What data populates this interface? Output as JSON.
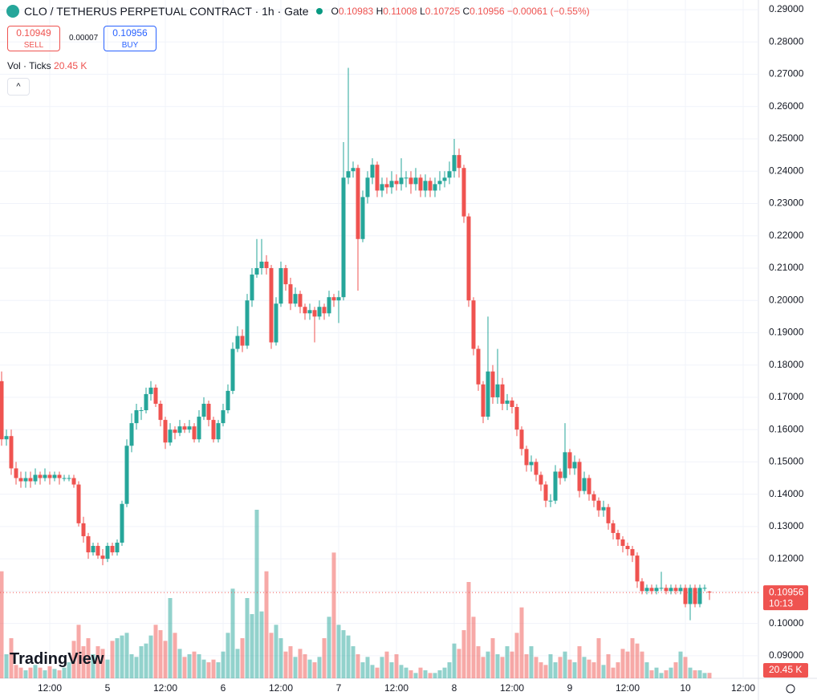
{
  "header": {
    "symbol": "CLO / TETHERUS PERPETUAL CONTRACT · 1h · Gate",
    "letters": [
      "O",
      "H",
      "L",
      "C"
    ],
    "change": "−0.00061 (−0.55%)",
    "sell_price": "0.10949",
    "sell": "SELL",
    "spread": "0.00007",
    "buy_price": "0.10956",
    "buy": "BUY",
    "volume_label": "Vol · Ticks",
    "volume_value": "20.45 K",
    "countdown": "10:13",
    "brand": "TradingView"
  },
  "chart_data": {
    "type": "candlestick",
    "up_color": "#26a69a",
    "down_color": "#ef5350",
    "open": [
      0.175,
      0.157,
      0.158,
      0.148,
      0.145,
      0.144,
      0.145,
      0.144,
      0.146,
      0.145,
      0.146,
      0.145,
      0.146,
      0.145,
      0.145,
      0.145,
      0.143,
      0.131,
      0.127,
      0.122,
      0.124,
      0.121,
      0.12,
      0.124,
      0.122,
      0.125,
      0.137,
      0.155,
      0.162,
      0.166,
      0.166,
      0.171,
      0.173,
      0.168,
      0.163,
      0.156,
      0.16,
      0.159,
      0.161,
      0.16,
      0.161,
      0.157,
      0.164,
      0.168,
      0.163,
      0.157,
      0.162,
      0.166,
      0.172,
      0.185,
      0.189,
      0.186,
      0.2,
      0.208,
      0.21,
      0.212,
      0.21,
      0.187,
      0.199,
      0.21,
      0.205,
      0.199,
      0.202,
      0.198,
      0.196,
      0.197,
      0.195,
      0.198,
      0.196,
      0.201,
      0.2,
      0.201,
      0.238,
      0.24,
      0.241,
      0.219,
      0.232,
      0.238,
      0.242,
      0.234,
      0.236,
      0.235,
      0.237,
      0.236,
      0.238,
      0.238,
      0.236,
      0.238,
      0.234,
      0.237,
      0.234,
      0.236,
      0.237,
      0.238,
      0.24,
      0.245,
      0.241,
      0.226,
      0.2,
      0.185,
      0.174,
      0.164,
      0.178,
      0.17,
      0.174,
      0.168,
      0.169,
      0.167,
      0.16,
      0.154,
      0.149,
      0.15,
      0.146,
      0.143,
      0.138,
      0.138,
      0.147,
      0.145,
      0.153,
      0.148,
      0.15,
      0.141,
      0.145,
      0.14,
      0.138,
      0.135,
      0.136,
      0.131,
      0.128,
      0.126,
      0.124,
      0.123,
      0.121,
      0.113,
      0.11,
      0.111,
      0.11,
      0.111,
      0.111,
      0.11,
      0.111,
      0.11,
      0.111,
      0.106,
      0.111,
      0.106,
      0.111,
      0.10983
    ],
    "high": [
      0.178,
      0.16,
      0.16,
      0.15,
      0.147,
      0.147,
      0.147,
      0.148,
      0.147,
      0.148,
      0.147,
      0.147,
      0.147,
      0.146,
      0.146,
      0.146,
      0.144,
      0.133,
      0.128,
      0.125,
      0.125,
      0.123,
      0.125,
      0.125,
      0.126,
      0.138,
      0.157,
      0.165,
      0.168,
      0.167,
      0.173,
      0.175,
      0.174,
      0.169,
      0.164,
      0.162,
      0.161,
      0.163,
      0.162,
      0.163,
      0.162,
      0.166,
      0.17,
      0.169,
      0.164,
      0.163,
      0.168,
      0.174,
      0.187,
      0.192,
      0.191,
      0.202,
      0.21,
      0.219,
      0.219,
      0.214,
      0.211,
      0.201,
      0.212,
      0.211,
      0.207,
      0.204,
      0.203,
      0.199,
      0.199,
      0.198,
      0.2,
      0.199,
      0.203,
      0.202,
      0.203,
      0.249,
      0.272,
      0.243,
      0.242,
      0.234,
      0.24,
      0.244,
      0.243,
      0.238,
      0.238,
      0.24,
      0.239,
      0.244,
      0.24,
      0.24,
      0.241,
      0.239,
      0.239,
      0.238,
      0.238,
      0.24,
      0.24,
      0.243,
      0.25,
      0.247,
      0.242,
      0.227,
      0.201,
      0.186,
      0.175,
      0.195,
      0.18,
      0.185,
      0.176,
      0.171,
      0.17,
      0.168,
      0.161,
      0.155,
      0.152,
      0.151,
      0.147,
      0.144,
      0.14,
      0.149,
      0.148,
      0.162,
      0.154,
      0.152,
      0.151,
      0.147,
      0.146,
      0.141,
      0.139,
      0.138,
      0.137,
      0.132,
      0.129,
      0.127,
      0.125,
      0.124,
      0.122,
      0.114,
      0.112,
      0.112,
      0.112,
      0.116,
      0.112,
      0.112,
      0.112,
      0.112,
      0.112,
      0.112,
      0.112,
      0.112,
      0.112,
      0.11008
    ],
    "low": [
      0.155,
      0.155,
      0.146,
      0.143,
      0.142,
      0.142,
      0.142,
      0.143,
      0.143,
      0.144,
      0.143,
      0.144,
      0.143,
      0.144,
      0.144,
      0.142,
      0.13,
      0.125,
      0.12,
      0.121,
      0.12,
      0.118,
      0.119,
      0.121,
      0.121,
      0.124,
      0.136,
      0.153,
      0.16,
      0.163,
      0.165,
      0.169,
      0.167,
      0.161,
      0.154,
      0.155,
      0.157,
      0.158,
      0.159,
      0.159,
      0.156,
      0.156,
      0.163,
      0.161,
      0.156,
      0.156,
      0.161,
      0.165,
      0.171,
      0.184,
      0.184,
      0.185,
      0.198,
      0.207,
      0.208,
      0.208,
      0.185,
      0.186,
      0.198,
      0.203,
      0.197,
      0.198,
      0.196,
      0.194,
      0.194,
      0.187,
      0.194,
      0.194,
      0.195,
      0.198,
      0.193,
      0.2,
      0.236,
      0.238,
      0.203,
      0.218,
      0.23,
      0.236,
      0.232,
      0.232,
      0.233,
      0.233,
      0.234,
      0.234,
      0.235,
      0.233,
      0.234,
      0.232,
      0.232,
      0.232,
      0.232,
      0.234,
      0.235,
      0.236,
      0.238,
      0.238,
      0.224,
      0.198,
      0.183,
      0.172,
      0.162,
      0.163,
      0.168,
      0.168,
      0.166,
      0.166,
      0.165,
      0.158,
      0.152,
      0.147,
      0.147,
      0.144,
      0.141,
      0.136,
      0.136,
      0.137,
      0.143,
      0.144,
      0.146,
      0.146,
      0.139,
      0.14,
      0.138,
      0.136,
      0.133,
      0.133,
      0.129,
      0.126,
      0.124,
      0.122,
      0.121,
      0.119,
      0.111,
      0.109,
      0.109,
      0.109,
      0.109,
      0.11,
      0.109,
      0.109,
      0.109,
      0.109,
      0.105,
      0.101,
      0.105,
      0.105,
      0.11,
      0.10725
    ],
    "close": [
      0.157,
      0.158,
      0.148,
      0.145,
      0.144,
      0.145,
      0.144,
      0.146,
      0.145,
      0.146,
      0.145,
      0.146,
      0.145,
      0.145,
      0.145,
      0.143,
      0.131,
      0.127,
      0.122,
      0.124,
      0.121,
      0.12,
      0.124,
      0.122,
      0.125,
      0.137,
      0.155,
      0.162,
      0.166,
      0.166,
      0.171,
      0.173,
      0.168,
      0.163,
      0.156,
      0.16,
      0.159,
      0.161,
      0.16,
      0.161,
      0.157,
      0.164,
      0.168,
      0.163,
      0.157,
      0.162,
      0.166,
      0.172,
      0.185,
      0.189,
      0.186,
      0.2,
      0.208,
      0.21,
      0.212,
      0.21,
      0.187,
      0.199,
      0.21,
      0.205,
      0.199,
      0.202,
      0.198,
      0.196,
      0.197,
      0.195,
      0.198,
      0.196,
      0.201,
      0.2,
      0.201,
      0.238,
      0.24,
      0.241,
      0.219,
      0.232,
      0.238,
      0.242,
      0.234,
      0.236,
      0.235,
      0.237,
      0.236,
      0.238,
      0.238,
      0.236,
      0.238,
      0.234,
      0.237,
      0.234,
      0.236,
      0.237,
      0.238,
      0.24,
      0.245,
      0.241,
      0.226,
      0.2,
      0.185,
      0.174,
      0.164,
      0.178,
      0.17,
      0.174,
      0.168,
      0.169,
      0.167,
      0.16,
      0.154,
      0.149,
      0.15,
      0.146,
      0.143,
      0.138,
      0.138,
      0.147,
      0.145,
      0.153,
      0.148,
      0.15,
      0.141,
      0.145,
      0.14,
      0.138,
      0.135,
      0.136,
      0.131,
      0.128,
      0.126,
      0.124,
      0.123,
      0.121,
      0.113,
      0.11,
      0.111,
      0.11,
      0.111,
      0.111,
      0.11,
      0.111,
      0.11,
      0.111,
      0.106,
      0.111,
      0.106,
      0.111,
      0.111,
      0.10956
    ],
    "volume": [
      400,
      90,
      150,
      50,
      40,
      30,
      40,
      50,
      40,
      30,
      45,
      35,
      30,
      40,
      60,
      140,
      200,
      120,
      150,
      90,
      120,
      110,
      70,
      140,
      150,
      160,
      170,
      90,
      80,
      120,
      130,
      160,
      200,
      180,
      140,
      300,
      170,
      110,
      80,
      90,
      100,
      90,
      70,
      60,
      70,
      60,
      100,
      170,
      335,
      110,
      150,
      300,
      240,
      630,
      250,
      400,
      170,
      200,
      150,
      100,
      120,
      80,
      110,
      90,
      70,
      60,
      80,
      150,
      230,
      470,
      200,
      180,
      160,
      120,
      90,
      60,
      80,
      50,
      40,
      80,
      100,
      60,
      90,
      50,
      40,
      30,
      20,
      40,
      30,
      20,
      20,
      30,
      40,
      60,
      130,
      110,
      180,
      360,
      230,
      120,
      80,
      100,
      150,
      90,
      80,
      120,
      100,
      170,
      265,
      90,
      120,
      80,
      60,
      50,
      90,
      60,
      80,
      100,
      70,
      60,
      120,
      80,
      70,
      60,
      150,
      50,
      90,
      40,
      60,
      110,
      100,
      150,
      130,
      100,
      60,
      30,
      40,
      20,
      30,
      40,
      60,
      100,
      80,
      40,
      30,
      30,
      20,
      20.45
    ],
    "ylim": [
      0.083,
      0.293
    ],
    "yticks": [
      {
        "value": 0.09,
        "label": "0.09000"
      },
      {
        "value": 0.1,
        "label": "0.10000"
      },
      {
        "value": 0.11,
        "label": "0.11000"
      },
      {
        "value": 0.12,
        "label": "0.12000"
      },
      {
        "value": 0.13,
        "label": "0.13000"
      },
      {
        "value": 0.14,
        "label": "0.14000"
      },
      {
        "value": 0.15,
        "label": "0.15000"
      },
      {
        "value": 0.16,
        "label": "0.16000"
      },
      {
        "value": 0.17,
        "label": "0.17000"
      },
      {
        "value": 0.18,
        "label": "0.18000"
      },
      {
        "value": 0.19,
        "label": "0.19000"
      },
      {
        "value": 0.2,
        "label": "0.20000"
      },
      {
        "value": 0.21,
        "label": "0.21000"
      },
      {
        "value": 0.22,
        "label": "0.22000"
      },
      {
        "value": 0.23,
        "label": "0.23000"
      },
      {
        "value": 0.24,
        "label": "0.24000"
      },
      {
        "value": 0.25,
        "label": "0.25000"
      },
      {
        "value": 0.26,
        "label": "0.26000"
      },
      {
        "value": 0.27,
        "label": "0.27000"
      },
      {
        "value": 0.28,
        "label": "0.28000"
      },
      {
        "value": 0.29,
        "label": "0.29000"
      }
    ],
    "xticks": [
      "12:00",
      "5",
      "12:00",
      "6",
      "12:00",
      "7",
      "12:00",
      "8",
      "12:00",
      "9",
      "12:00",
      "10",
      "12:00"
    ],
    "grid": true
  }
}
